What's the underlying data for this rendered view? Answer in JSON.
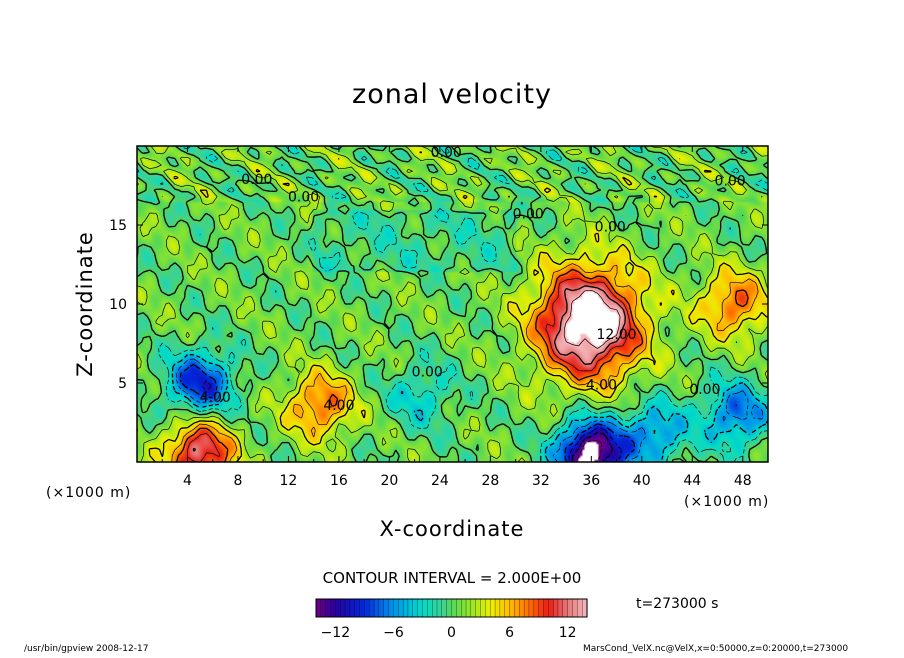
{
  "chart_data": {
    "type": "heatmap",
    "title": "zonal velocity",
    "xlabel": "X-coordinate",
    "ylabel": "Z-coordinate",
    "x_unit_left": "(×1000 m)",
    "x_unit_right": "(×1000 m)",
    "xlim": [
      0,
      50
    ],
    "ylim": [
      0,
      20
    ],
    "x_ticks": [
      "4",
      "8",
      "12",
      "16",
      "20",
      "24",
      "28",
      "32",
      "36",
      "40",
      "44",
      "48"
    ],
    "x_tick_values": [
      4,
      8,
      12,
      16,
      20,
      24,
      28,
      32,
      36,
      40,
      44,
      48
    ],
    "y_ticks": [
      "5",
      "10",
      "15"
    ],
    "y_tick_values": [
      5,
      10,
      15
    ],
    "contour_interval_label": "CONTOUR INTERVAL = 2.000E+00",
    "time_label": "t=273000 s",
    "colorbar": {
      "range": [
        -14,
        14
      ],
      "ticks": [
        "−12",
        "−6",
        "0",
        "6",
        "12"
      ],
      "tick_values": [
        -12,
        -6,
        0,
        6,
        12
      ]
    },
    "contour_labels": [
      {
        "text": "0.00",
        "x": 24.5,
        "y": 19.3
      },
      {
        "text": "0.00",
        "x": 9.5,
        "y": 17.6
      },
      {
        "text": "0.00",
        "x": 13.2,
        "y": 16.5
      },
      {
        "text": "0.00",
        "x": 31.0,
        "y": 15.4
      },
      {
        "text": "0.00",
        "x": 37.5,
        "y": 14.6
      },
      {
        "text": "0.00",
        "x": 47.0,
        "y": 17.5
      },
      {
        "text": "4.00",
        "x": 6.2,
        "y": 3.8
      },
      {
        "text": "4.00",
        "x": 16.0,
        "y": 3.3
      },
      {
        "text": "0.00",
        "x": 23.0,
        "y": 5.4
      },
      {
        "text": "4.00",
        "x": 36.8,
        "y": 4.6
      },
      {
        "text": "12.00",
        "x": 38.0,
        "y": 7.8
      },
      {
        "text": "0.00",
        "x": 45.0,
        "y": 4.3
      }
    ],
    "features": [
      {
        "kind": "max",
        "x": 35.8,
        "y": 8.8,
        "value": 14
      },
      {
        "kind": "min",
        "x": 36.0,
        "y": 0.5,
        "value": -14
      },
      {
        "kind": "max",
        "x": 5.0,
        "y": 0.6,
        "value": 12
      },
      {
        "kind": "min",
        "x": 5.0,
        "y": 5.0,
        "value": -10
      },
      {
        "kind": "max",
        "x": 14.5,
        "y": 3.6,
        "value": 8
      },
      {
        "kind": "max",
        "x": 47.3,
        "y": 10.0,
        "value": 8
      },
      {
        "kind": "min",
        "x": 47.5,
        "y": 3.0,
        "value": -8
      },
      {
        "kind": "min",
        "x": 41.0,
        "y": 1.8,
        "value": -7
      },
      {
        "kind": "min",
        "x": 22.5,
        "y": 4.2,
        "value": -4
      }
    ]
  },
  "footer": {
    "program": "/usr/bin/gpview   2008-12-17",
    "source": "MarsCond_VelX.nc@VelX,x=0:50000,z=0:20000,t=273000"
  }
}
